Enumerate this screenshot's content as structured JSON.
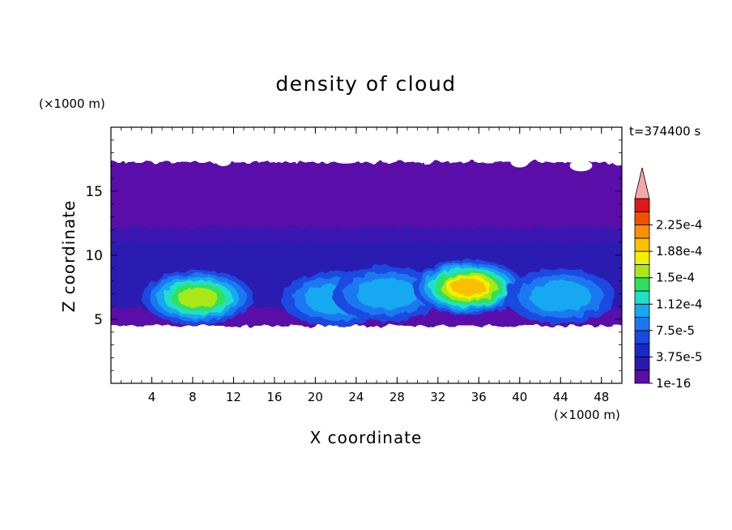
{
  "chart_data": {
    "type": "heatmap",
    "title": "density of cloud",
    "xlabel": "X coordinate",
    "ylabel": "Z coordinate",
    "x_unit": "(×1000 m)",
    "y_unit": "(×1000 m)",
    "time_label": "t=374400 s",
    "xlim": [
      0,
      50
    ],
    "ylim": [
      0,
      20
    ],
    "x_ticks": [
      4,
      8,
      12,
      16,
      20,
      24,
      28,
      32,
      36,
      40,
      44,
      48
    ],
    "y_ticks": [
      5,
      10,
      15
    ],
    "colorbar": {
      "levels": [
        1e-16,
        1.875e-05,
        3.75e-05,
        5.625e-05,
        7.5e-05,
        9.375e-05,
        0.0001125,
        0.00013125,
        0.00015,
        0.00016875,
        0.0001875,
        0.00020625,
        0.000225,
        0.00024375
      ],
      "labels": [
        "1e-16",
        "3.75e-5",
        "7.5e-5",
        "1.12e-4",
        "1.5e-4",
        "1.88e-4",
        "2.25e-4"
      ],
      "colors": [
        "#5a0ea8",
        "#2a1ab0",
        "#1a28c8",
        "#1a48e0",
        "#1a78f0",
        "#18a8f0",
        "#20e0c8",
        "#30e060",
        "#a8e818",
        "#f0f000",
        "#f8c000",
        "#f89000",
        "#f05000",
        "#e01818"
      ],
      "extend_color": "#f4a8a8"
    },
    "series": [
      {
        "region": "upper cloud layer",
        "x_range": [
          0,
          50
        ],
        "z_range": [
          13,
          17.5
        ],
        "level_index": 0
      },
      {
        "region": "mid cloud layer",
        "x_range": [
          0,
          50
        ],
        "z_range": [
          10,
          13
        ],
        "level_index": 1
      },
      {
        "region": "cloud base",
        "x_range": [
          0,
          50
        ],
        "z_range": [
          4.7,
          10
        ],
        "level_index": 3
      },
      {
        "region": "core A",
        "x_center": 8.5,
        "z_center": 6.7,
        "peak_level": 0.00015
      },
      {
        "region": "core B",
        "x_center": 22,
        "z_center": 6.6,
        "peak_level": 0.000112
      },
      {
        "region": "core C",
        "x_center": 27,
        "z_center": 7.0,
        "peak_level": 0.000112
      },
      {
        "region": "core D",
        "x_center": 35,
        "z_center": 7.5,
        "peak_level": 0.000188
      },
      {
        "region": "core E",
        "x_center": 44,
        "z_center": 6.8,
        "peak_level": 0.000112
      }
    ]
  }
}
